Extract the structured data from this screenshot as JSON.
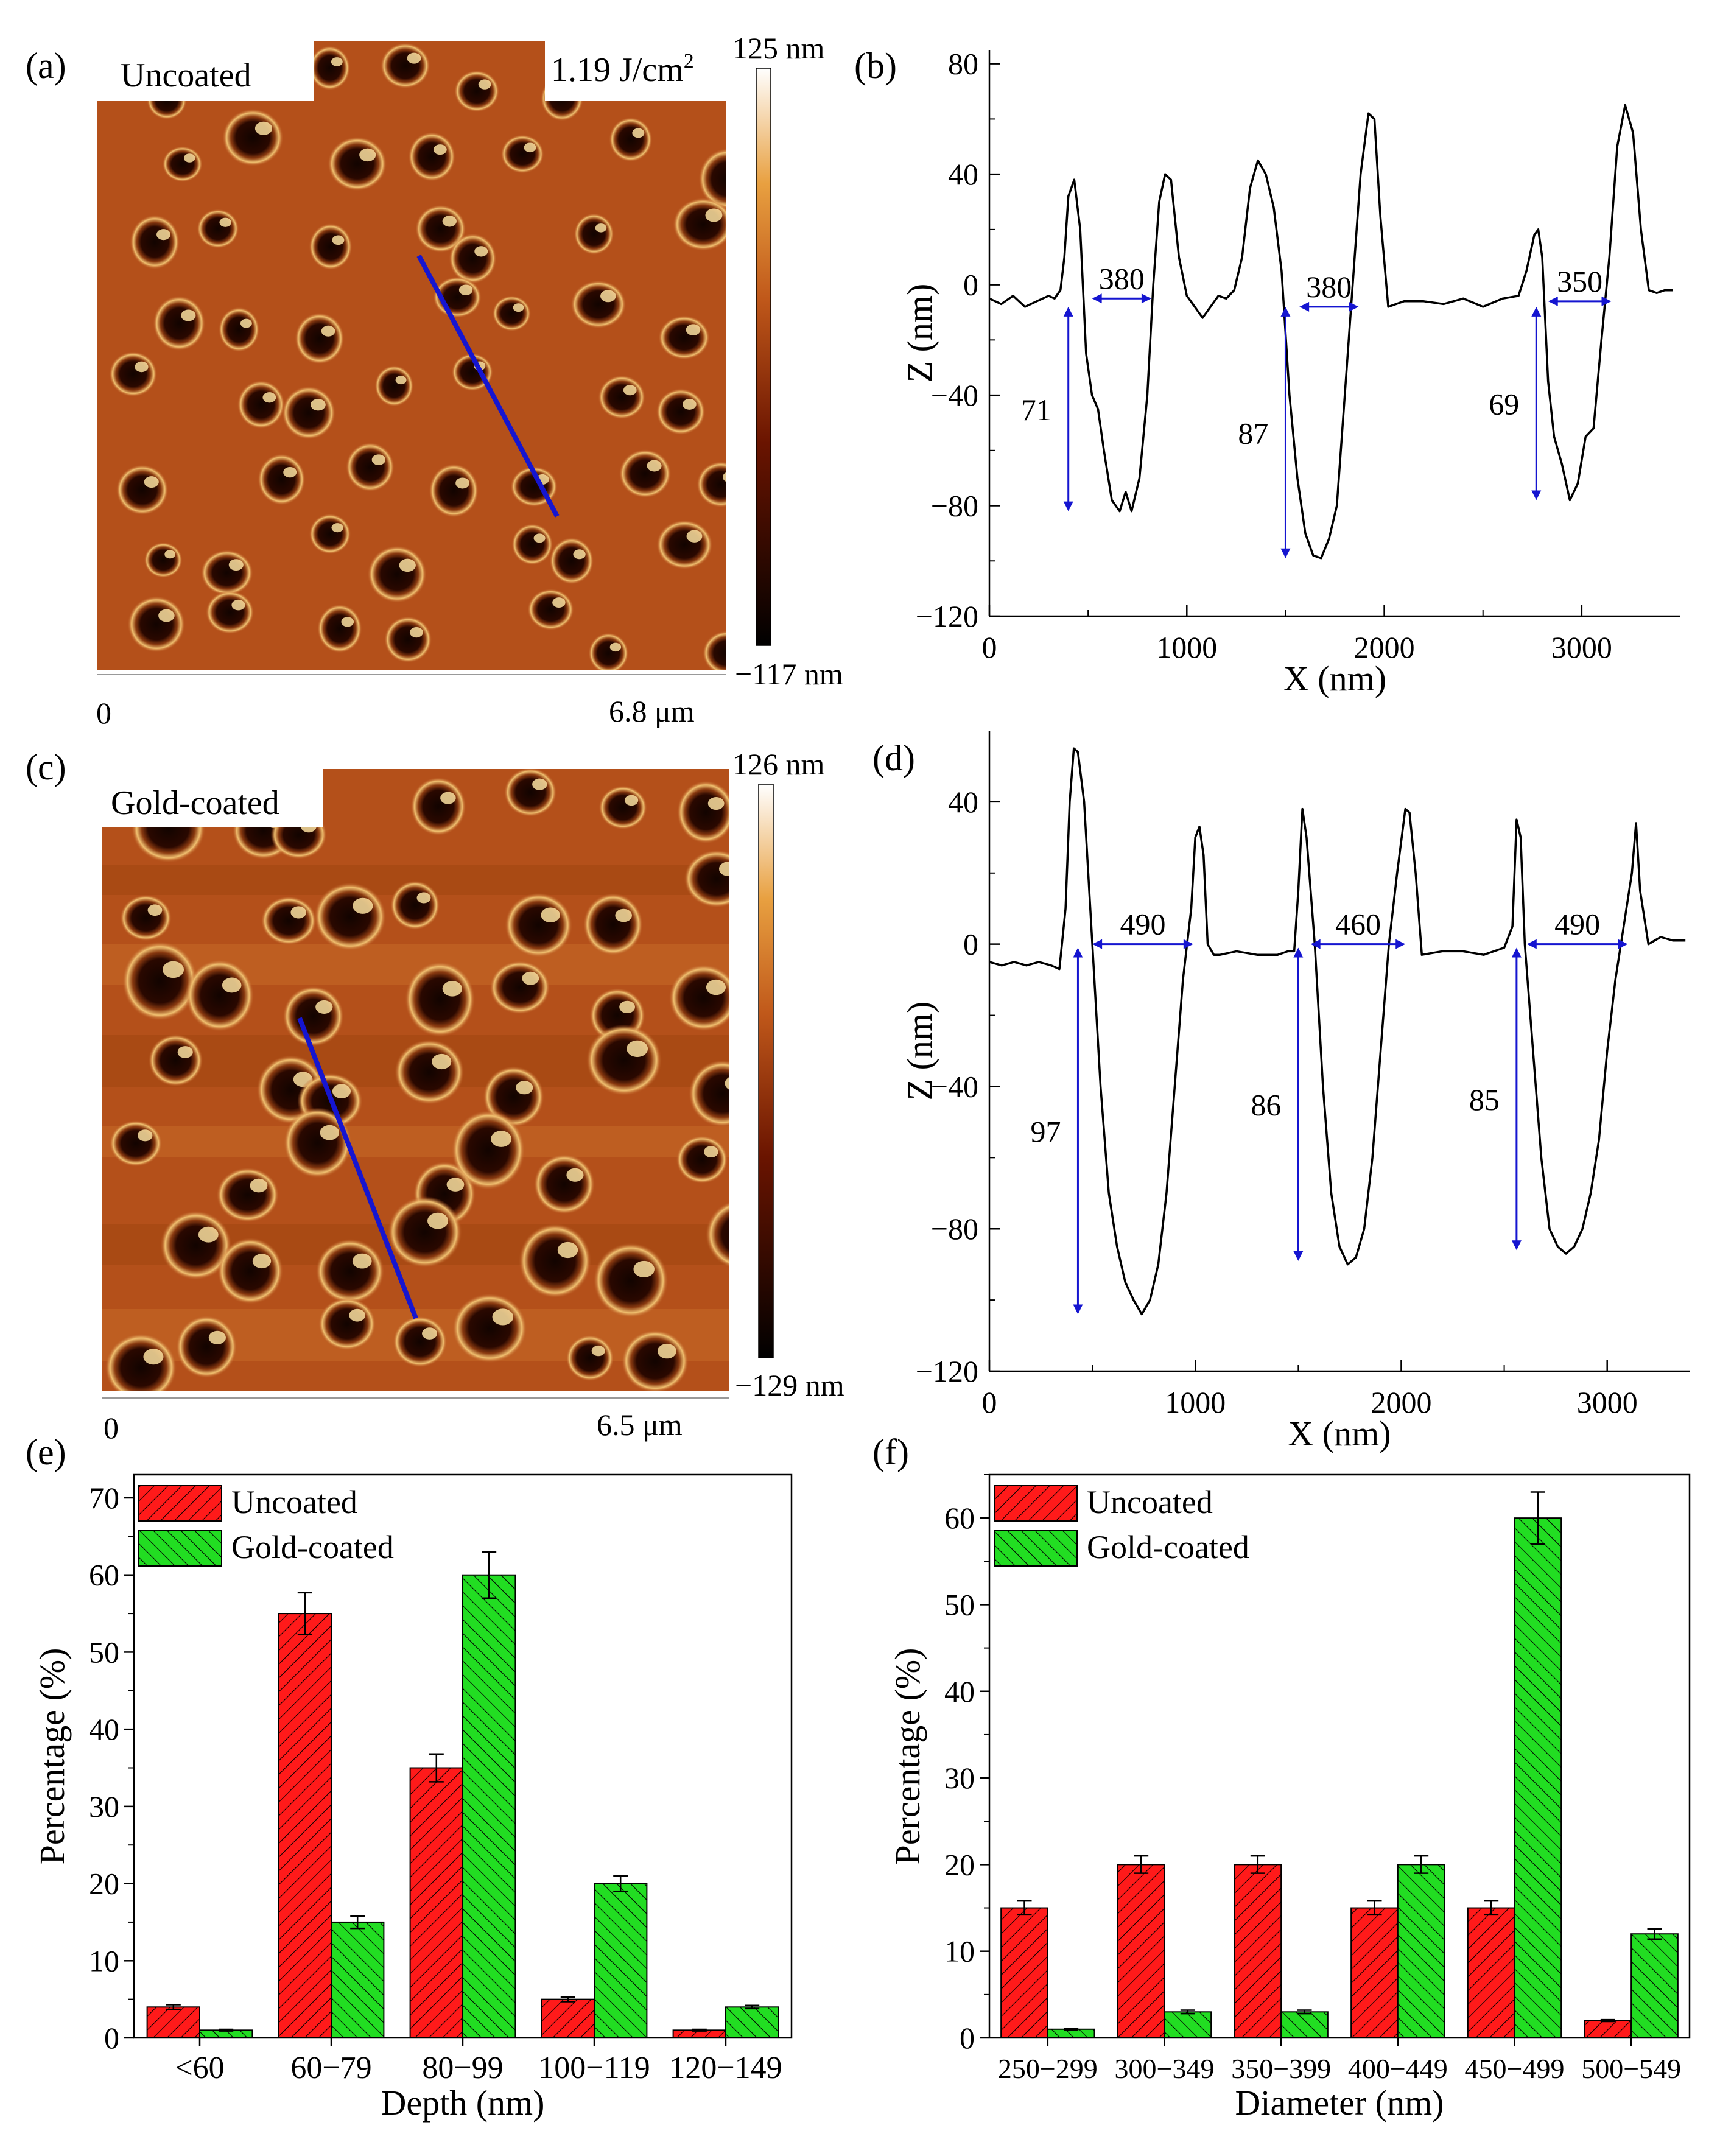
{
  "colors": {
    "uncoated": "#ff1a1a",
    "gold_coated": "#22dd22",
    "profile_line": "#000000",
    "annotation": "#1515d0",
    "scan_line": "#1515d0",
    "afm_base": "#b4501a"
  },
  "panels": {
    "a": {
      "label": "(a)",
      "tag": "Uncoated",
      "fluence": "1.19 J/cm",
      "fluence_sup": "2",
      "scale_max": "125 nm",
      "scale_min": "−117 nm",
      "axis_start": "0",
      "axis_end": "6.8 μm"
    },
    "c": {
      "label": "(c)",
      "tag": "Gold-coated",
      "scale_max": "126 nm",
      "scale_min": "−129 nm",
      "axis_start": "0",
      "axis_end": "6.5 μm"
    },
    "b": {
      "label": "(b)"
    },
    "d": {
      "label": "(d)"
    },
    "e": {
      "label": "(e)"
    },
    "f": {
      "label": "(f)"
    }
  },
  "chart_data": [
    {
      "id": "b",
      "type": "line",
      "xlabel": "X (nm)",
      "ylabel": "Z (nm)",
      "xlim": [
        0,
        3500
      ],
      "ylim": [
        -120,
        85
      ],
      "xticks": [
        0,
        1000,
        2000,
        3000
      ],
      "yticks": [
        80,
        40,
        0,
        -40,
        -80,
        -120
      ],
      "ytick_labels": [
        "80",
        "40",
        "0",
        "−40",
        "−80",
        "−120"
      ],
      "x": [
        0,
        60,
        120,
        180,
        240,
        300,
        330,
        360,
        380,
        400,
        430,
        460,
        490,
        520,
        550,
        580,
        620,
        660,
        690,
        720,
        760,
        800,
        830,
        860,
        890,
        920,
        960,
        1000,
        1040,
        1080,
        1120,
        1160,
        1200,
        1240,
        1280,
        1320,
        1360,
        1400,
        1440,
        1480,
        1520,
        1560,
        1600,
        1640,
        1680,
        1720,
        1760,
        1800,
        1840,
        1880,
        1920,
        1950,
        1980,
        2020,
        2060,
        2100,
        2200,
        2300,
        2400,
        2500,
        2600,
        2680,
        2720,
        2760,
        2780,
        2800,
        2830,
        2860,
        2900,
        2940,
        2980,
        3020,
        3060,
        3100,
        3140,
        3180,
        3220,
        3260,
        3300,
        3340,
        3380,
        3420,
        3460
      ],
      "y": [
        -5,
        -7,
        -4,
        -8,
        -6,
        -4,
        -5,
        -2,
        10,
        32,
        38,
        20,
        -25,
        -40,
        -45,
        -60,
        -78,
        -82,
        -75,
        -82,
        -70,
        -40,
        0,
        30,
        40,
        38,
        10,
        -4,
        -8,
        -12,
        -8,
        -4,
        -5,
        -2,
        10,
        35,
        45,
        40,
        28,
        5,
        -40,
        -70,
        -90,
        -98,
        -99,
        -92,
        -80,
        -40,
        0,
        40,
        62,
        60,
        25,
        -8,
        -7,
        -6,
        -6,
        -7,
        -5,
        -8,
        -5,
        -4,
        5,
        18,
        20,
        10,
        -35,
        -55,
        -65,
        -78,
        -72,
        -55,
        -52,
        -20,
        10,
        50,
        65,
        55,
        20,
        -2,
        -3,
        -2,
        -2
      ],
      "annotations": [
        {
          "type": "width",
          "label": "380",
          "x1": 520,
          "x2": 820,
          "y": -5
        },
        {
          "type": "width",
          "label": "380",
          "x1": 1570,
          "x2": 1870,
          "y": -8
        },
        {
          "type": "width",
          "label": "350",
          "x1": 2830,
          "x2": 3150,
          "y": -6
        },
        {
          "type": "depth",
          "label": "71",
          "x": 400,
          "y1": -8,
          "y2": -82
        },
        {
          "type": "depth",
          "label": "87",
          "x": 1500,
          "y1": -8,
          "y2": -99
        },
        {
          "type": "depth",
          "label": "69",
          "x": 2770,
          "y1": -8,
          "y2": -78
        }
      ]
    },
    {
      "id": "d",
      "type": "line",
      "xlabel": "X (nm)",
      "ylabel": "Z (nm)",
      "xlim": [
        0,
        3400
      ],
      "ylim": [
        -120,
        60
      ],
      "xticks": [
        0,
        1000,
        2000,
        3000
      ],
      "yticks": [
        40,
        0,
        -40,
        -80,
        -120
      ],
      "ytick_labels": [
        "40",
        "0",
        "−40",
        "−80",
        "−120"
      ],
      "x": [
        0,
        60,
        120,
        180,
        240,
        300,
        340,
        370,
        390,
        410,
        430,
        460,
        500,
        540,
        580,
        620,
        660,
        700,
        740,
        780,
        820,
        860,
        900,
        940,
        980,
        1000,
        1020,
        1040,
        1060,
        1090,
        1120,
        1200,
        1300,
        1400,
        1450,
        1480,
        1500,
        1520,
        1540,
        1580,
        1620,
        1660,
        1700,
        1740,
        1780,
        1820,
        1860,
        1900,
        1940,
        1980,
        2020,
        2040,
        2070,
        2100,
        2200,
        2300,
        2400,
        2500,
        2540,
        2560,
        2580,
        2600,
        2640,
        2680,
        2720,
        2760,
        2800,
        2840,
        2880,
        2920,
        2960,
        3000,
        3040,
        3080,
        3120,
        3140,
        3160,
        3200,
        3260,
        3320,
        3380
      ],
      "y": [
        -5,
        -6,
        -5,
        -6,
        -5,
        -6,
        -7,
        10,
        40,
        55,
        54,
        40,
        0,
        -40,
        -70,
        -85,
        -95,
        -100,
        -104,
        -100,
        -90,
        -70,
        -40,
        -10,
        10,
        30,
        33,
        25,
        0,
        -3,
        -3,
        -2,
        -3,
        -3,
        -2,
        -2,
        15,
        38,
        30,
        0,
        -40,
        -70,
        -85,
        -90,
        -88,
        -80,
        -60,
        -30,
        0,
        20,
        38,
        37,
        20,
        -3,
        -2,
        -2,
        -3,
        -1,
        5,
        35,
        30,
        0,
        -30,
        -60,
        -80,
        -85,
        -87,
        -85,
        -80,
        -70,
        -55,
        -30,
        -10,
        5,
        20,
        34,
        15,
        0,
        2,
        1,
        1
      ],
      "annotations": [
        {
          "type": "width",
          "label": "490",
          "x1": 500,
          "x2": 990,
          "y": 0
        },
        {
          "type": "width",
          "label": "460",
          "x1": 1560,
          "x2": 2020,
          "y": 0
        },
        {
          "type": "width",
          "label": "490",
          "x1": 2610,
          "x2": 3100,
          "y": 0
        },
        {
          "type": "depth",
          "label": "97",
          "x": 430,
          "y1": -1,
          "y2": -104
        },
        {
          "type": "depth",
          "label": "86",
          "x": 1500,
          "y1": -1,
          "y2": -89
        },
        {
          "type": "depth",
          "label": "85",
          "x": 2560,
          "y1": -1,
          "y2": -86
        }
      ]
    },
    {
      "id": "e",
      "type": "bar",
      "xlabel": "Depth (nm)",
      "ylabel": "Percentage (%)",
      "ylim": [
        0,
        73
      ],
      "yticks": [
        0,
        10,
        20,
        30,
        40,
        50,
        60,
        70
      ],
      "categories": [
        "<60",
        "60−79",
        "80−99",
        "100−119",
        "120−149"
      ],
      "series": [
        {
          "name": "Uncoated",
          "values": [
            4,
            55,
            35,
            5,
            1
          ],
          "errors": [
            0.3,
            2.7,
            1.8,
            0.3,
            0.1
          ]
        },
        {
          "name": "Gold-coated",
          "values": [
            1,
            15,
            60,
            20,
            4
          ],
          "errors": [
            0.1,
            0.8,
            3.0,
            1.0,
            0.2
          ]
        }
      ],
      "legend": "top-left"
    },
    {
      "id": "f",
      "type": "bar",
      "xlabel": "Diameter (nm)",
      "ylabel": "Percentage (%)",
      "ylim": [
        0,
        65
      ],
      "yticks": [
        0,
        10,
        20,
        30,
        40,
        50,
        60
      ],
      "categories": [
        "250−299",
        "300−349",
        "350−399",
        "400−449",
        "450−499",
        "500−549"
      ],
      "series": [
        {
          "name": "Uncoated",
          "values": [
            15,
            20,
            20,
            15,
            15,
            2
          ],
          "errors": [
            0.8,
            1.0,
            1.0,
            0.8,
            0.8,
            0.1
          ]
        },
        {
          "name": "Gold-coated",
          "values": [
            1,
            3,
            3,
            20,
            60,
            12
          ],
          "errors": [
            0.1,
            0.2,
            0.2,
            1.0,
            3.0,
            0.6
          ]
        }
      ],
      "legend": "top-left"
    }
  ]
}
